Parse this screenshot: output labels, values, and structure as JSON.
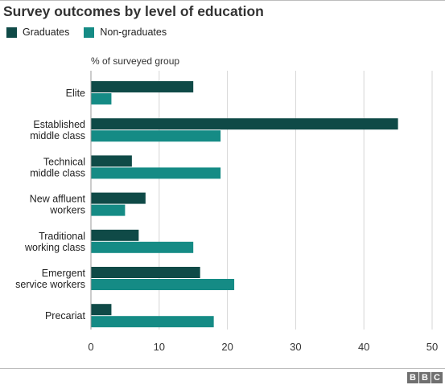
{
  "title": "Survey outcomes by level of education",
  "legend": [
    {
      "name": "Graduates",
      "color": "#0f4a47"
    },
    {
      "name": "Non-graduates",
      "color": "#158b85"
    }
  ],
  "chart_data": {
    "type": "bar",
    "orientation": "horizontal",
    "title": "Survey outcomes by level of education",
    "ylabel": "% of surveyed group",
    "categories": [
      [
        "Elite"
      ],
      [
        "Established",
        "middle class"
      ],
      [
        "Technical",
        "middle class"
      ],
      [
        "New affluent",
        "workers"
      ],
      [
        "Traditional",
        "working class"
      ],
      [
        "Emergent",
        "service workers"
      ],
      [
        "Precariat"
      ]
    ],
    "series": [
      {
        "name": "Graduates",
        "color": "#0f4a47",
        "values": [
          15,
          45,
          6,
          8,
          7,
          16,
          3
        ]
      },
      {
        "name": "Non-graduates",
        "color": "#158b85",
        "values": [
          3,
          19,
          19,
          5,
          15,
          21,
          18
        ]
      }
    ],
    "xlim": [
      0,
      50
    ],
    "xticks": [
      0,
      10,
      20,
      30,
      40,
      50
    ],
    "grid": true,
    "legend_position": "top-left"
  },
  "logo": {
    "letters": [
      "B",
      "B",
      "C"
    ]
  }
}
